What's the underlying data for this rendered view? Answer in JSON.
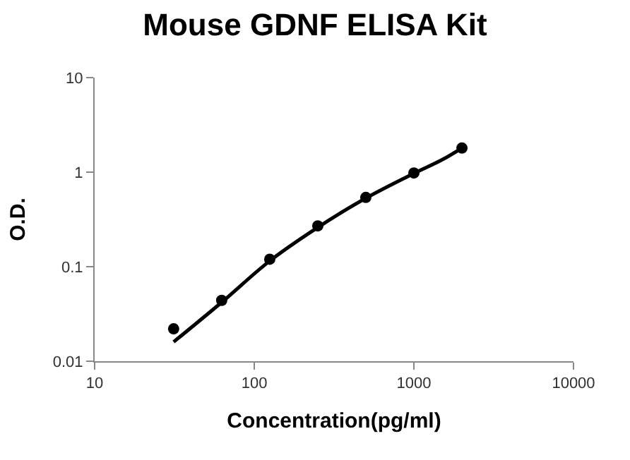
{
  "chart_data": {
    "type": "scatter",
    "title": "Mouse GDNF ELISA Kit",
    "xlabel": "Concentration(pg/ml)",
    "ylabel": "O.D.",
    "log": "xy",
    "marker": "circle",
    "xlim": [
      10,
      10000
    ],
    "xticks": [
      10,
      100,
      1000,
      10000
    ],
    "ylim": [
      0.01,
      10
    ],
    "yticks": [
      0.01,
      0.1,
      1,
      10
    ],
    "series": [
      {
        "color": "#000000",
        "x": [
          31.25,
          62.5,
          125,
          250,
          500,
          1000,
          2000
        ],
        "values": [
          0.022,
          0.044,
          0.12,
          0.27,
          0.54,
          0.98,
          1.8
        ]
      },
      {
        "type": "line",
        "color": "#000000",
        "marker": "none",
        "line_style": "solid",
        "x": [
          31.25,
          62.5,
          125,
          250,
          500,
          1000,
          1500,
          2000
        ],
        "values": [
          0.016,
          0.042,
          0.115,
          0.26,
          0.53,
          0.97,
          1.35,
          1.8
        ]
      }
    ]
  }
}
